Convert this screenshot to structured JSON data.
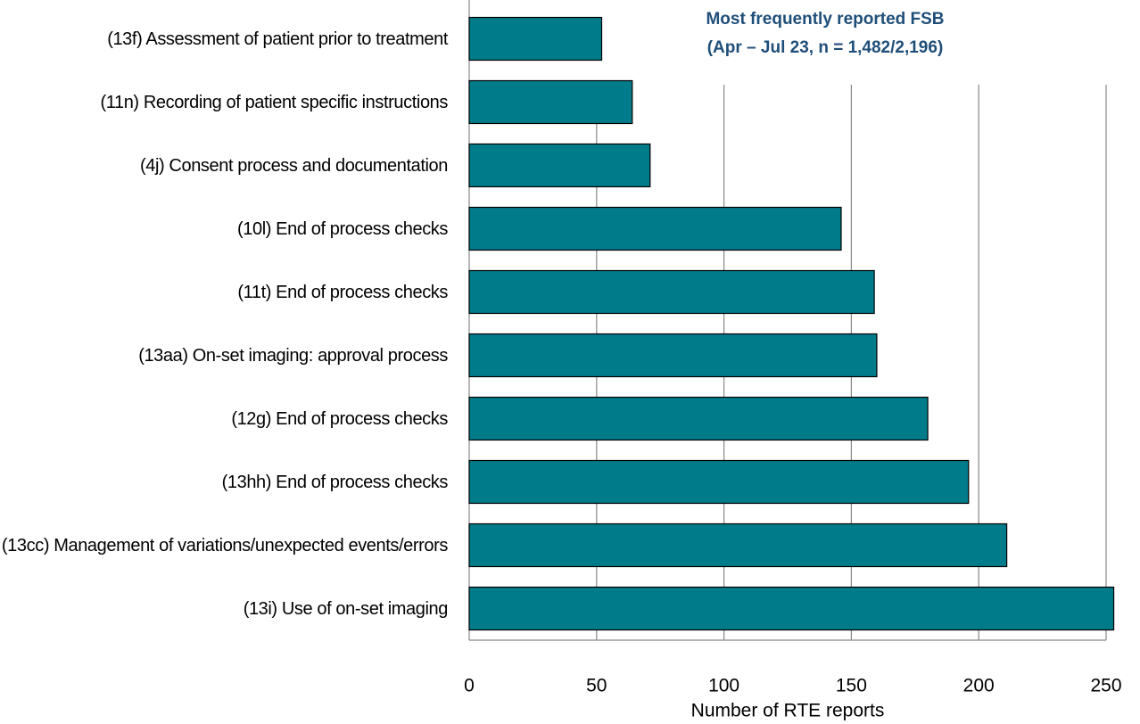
{
  "chart_data": {
    "type": "barh",
    "title": "Most frequently reported FSB",
    "subtitle": "(Apr – Jul 23, n = 1,482/2,196)",
    "x_label": "Number of RTE reports",
    "categories": [
      "(13f) Assessment of patient prior to treatment",
      "(11n) Recording of patient specific instructions",
      "(4j) Consent process and documentation",
      "(10l) End of process checks",
      "(11t) End of process checks",
      "(13aa) On-set imaging: approval process",
      "(12g) End of process checks",
      "(13hh) End of process checks",
      "(13cc) Management of variations/unexpected events/errors",
      "(13i) Use of on-set imaging"
    ],
    "values": [
      52,
      64,
      71,
      146,
      159,
      160,
      180,
      196,
      211,
      253
    ],
    "color": "#007b8a",
    "xlim": [
      0,
      250
    ],
    "xticks": [
      0,
      50,
      100,
      150,
      200,
      250
    ],
    "grid": true
  }
}
